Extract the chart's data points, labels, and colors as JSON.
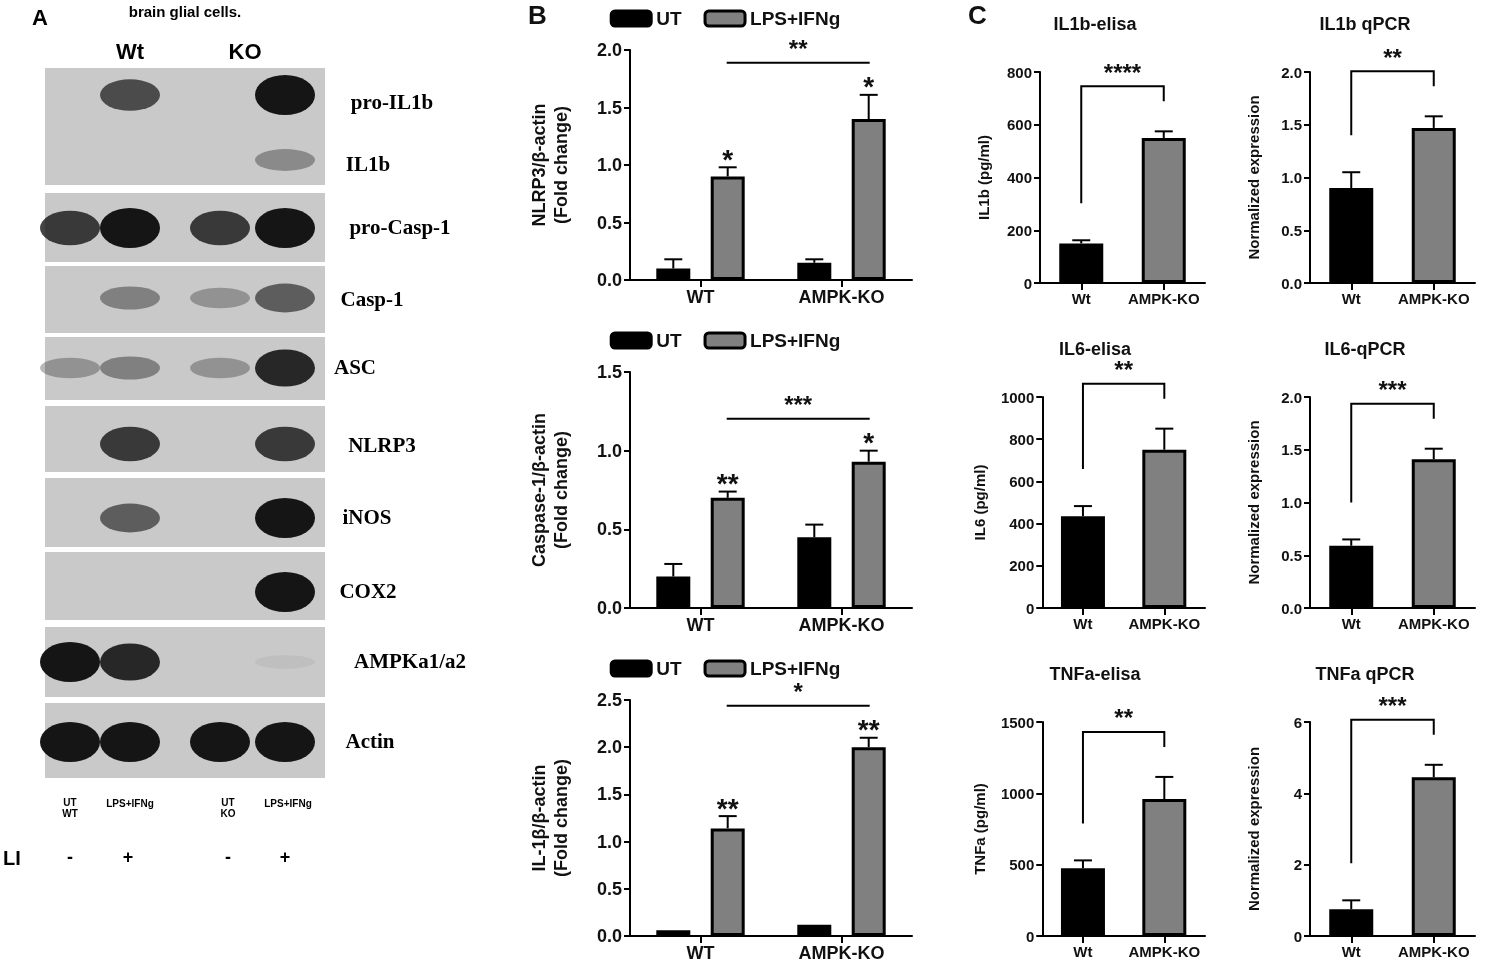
{
  "chart_data": [
    {
      "type": "other",
      "annotations": [
        "A",
        "brain glial cells.",
        "Wt",
        "KO",
        "pro-IL1b",
        "IL1b",
        "pro-Casp-1",
        "Casp-1",
        "ASC",
        "NLRP3",
        "iNOS",
        "COX2",
        "AMPKa1/a2",
        "Actin",
        "UT\nWT",
        "LPS+IFNg",
        "UT\nKO",
        "LPS+IFNg",
        "LI",
        "-",
        "+",
        "-",
        "+"
      ]
    },
    {
      "type": "bar",
      "ylabel": "NLRP3/β-actin\n(Fold change)",
      "categories": [
        "WT",
        "AMPK-KO"
      ],
      "series": [
        {
          "name": "UT",
          "color": "#000000",
          "values": [
            0.1,
            0.15
          ],
          "errors": [
            0.08,
            0.03
          ]
        },
        {
          "name": "LPS+IFNg",
          "color": "#808080",
          "values": [
            0.9,
            1.4
          ],
          "errors": [
            0.08,
            0.21
          ]
        }
      ],
      "ylim": [
        0,
        2
      ],
      "yticks": [
        {
          "value": 0,
          "label": "0.0"
        },
        {
          "value": 0.5,
          "label": "0.5"
        },
        {
          "value": 1,
          "label": "1.0"
        },
        {
          "value": 1.5,
          "label": "1.5"
        },
        {
          "value": 2,
          "label": "2.0"
        }
      ],
      "legend": "top",
      "annotations": [
        {
          "text": "B"
        },
        "**",
        "*",
        "*"
      ]
    },
    {
      "type": "bar",
      "ylabel": "Caspase-1/β-actin\n(Fold change)",
      "categories": [
        "WT",
        "AMPK-KO"
      ],
      "series": [
        {
          "name": "UT",
          "color": "#000000",
          "values": [
            0.2,
            0.45
          ],
          "errors": [
            0.08,
            0.08
          ]
        },
        {
          "name": "LPS+IFNg",
          "color": "#808080",
          "values": [
            0.7,
            0.93
          ],
          "errors": [
            0.04,
            0.07
          ]
        }
      ],
      "ylim": [
        0,
        1.5
      ],
      "yticks": [
        {
          "value": 0,
          "label": "0.0"
        },
        {
          "value": 0.5,
          "label": "0.5"
        },
        {
          "value": 1,
          "label": "1.0"
        },
        {
          "value": 1.5,
          "label": "1.5"
        }
      ],
      "legend": "top",
      "annotations": [
        "***",
        "**",
        "*"
      ]
    },
    {
      "type": "bar",
      "ylabel": "IL-1β/β-actin\n(Fold change)",
      "categories": [
        "WT",
        "AMPK-KO"
      ],
      "series": [
        {
          "name": "UT",
          "color": "#000000",
          "values": [
            0.06,
            0.12
          ],
          "errors": [
            null,
            null
          ]
        },
        {
          "name": "LPS+IFNg",
          "color": "#808080",
          "values": [
            1.14,
            2.0
          ],
          "errors": [
            0.13,
            0.1
          ]
        }
      ],
      "ylim": [
        0,
        2.5
      ],
      "yticks": [
        {
          "value": 0,
          "label": "0.0"
        },
        {
          "value": 0.5,
          "label": "0.5"
        },
        {
          "value": 1,
          "label": "1.0"
        },
        {
          "value": 1.5,
          "label": "1.5"
        },
        {
          "value": 2,
          "label": "2.0"
        },
        {
          "value": 2.5,
          "label": "2.5"
        }
      ],
      "legend": "top",
      "annotations": [
        "*",
        "**",
        "**"
      ]
    },
    {
      "type": "bar",
      "title": "IL1b-elisa",
      "ylabel": "IL1b (pg/ml)",
      "categories": [
        "Wt",
        "AMPK-KO"
      ],
      "values": [
        150,
        550
      ],
      "errors": [
        12,
        25
      ],
      "colors": [
        "#000000",
        "#808080"
      ],
      "ylim": [
        0,
        800
      ],
      "yticks": [
        0,
        200,
        400,
        600,
        800
      ],
      "annotations": [
        {
          "text": "C"
        },
        "****"
      ]
    },
    {
      "type": "bar",
      "title": "IL1b qPCR",
      "ylabel": "Normalized expression",
      "categories": [
        "Wt",
        "AMPK-KO"
      ],
      "values": [
        0.9,
        1.47
      ],
      "errors": [
        0.15,
        0.11
      ],
      "colors": [
        "#000000",
        "#808080"
      ],
      "ylim": [
        0,
        2
      ],
      "yticks": [
        {
          "value": 0,
          "label": "0.0"
        },
        {
          "value": 0.5,
          "label": "0.5"
        },
        {
          "value": 1,
          "label": "1.0"
        },
        {
          "value": 1.5,
          "label": "1.5"
        },
        {
          "value": 2,
          "label": "2.0"
        }
      ],
      "annotations": [
        "**"
      ]
    },
    {
      "type": "bar",
      "title": "IL6-elisa",
      "ylabel": "IL6 (pg/ml)",
      "categories": [
        "Wt",
        "AMPK-KO"
      ],
      "values": [
        435,
        750
      ],
      "errors": [
        48,
        100
      ],
      "colors": [
        "#000000",
        "#808080"
      ],
      "ylim": [
        0,
        1000
      ],
      "yticks": [
        0,
        200,
        400,
        600,
        800,
        1000
      ],
      "annotations": [
        "**"
      ]
    },
    {
      "type": "bar",
      "title": "IL6-qPCR",
      "ylabel": "Normalized expression",
      "categories": [
        "Wt",
        "AMPK-KO"
      ],
      "values": [
        0.59,
        1.41
      ],
      "errors": [
        0.06,
        0.1
      ],
      "colors": [
        "#000000",
        "#808080"
      ],
      "ylim": [
        0,
        2
      ],
      "yticks": [
        {
          "value": 0,
          "label": "0.0"
        },
        {
          "value": 0.5,
          "label": "0.5"
        },
        {
          "value": 1,
          "label": "1.0"
        },
        {
          "value": 1.5,
          "label": "1.5"
        },
        {
          "value": 2,
          "label": "2.0"
        }
      ],
      "annotations": [
        "***"
      ]
    },
    {
      "type": "bar",
      "title": "TNFa-elisa",
      "ylabel": "TNFa (pg/ml)",
      "categories": [
        "Wt",
        "AMPK-KO"
      ],
      "values": [
        475,
        960
      ],
      "errors": [
        55,
        155
      ],
      "colors": [
        "#000000",
        "#808080"
      ],
      "ylim": [
        0,
        1500
      ],
      "yticks": [
        0,
        500,
        1000,
        1500
      ],
      "annotations": [
        "**"
      ]
    },
    {
      "type": "bar",
      "title": "TNFa qPCR",
      "ylabel": "Normalized expression",
      "categories": [
        "Wt",
        "AMPK-KO"
      ],
      "values": [
        0.75,
        4.45
      ],
      "errors": [
        0.25,
        0.35
      ],
      "colors": [
        "#000000",
        "#808080"
      ],
      "ylim": [
        0,
        6
      ],
      "yticks": [
        0,
        2,
        4,
        6
      ],
      "annotations": [
        "***"
      ]
    }
  ]
}
